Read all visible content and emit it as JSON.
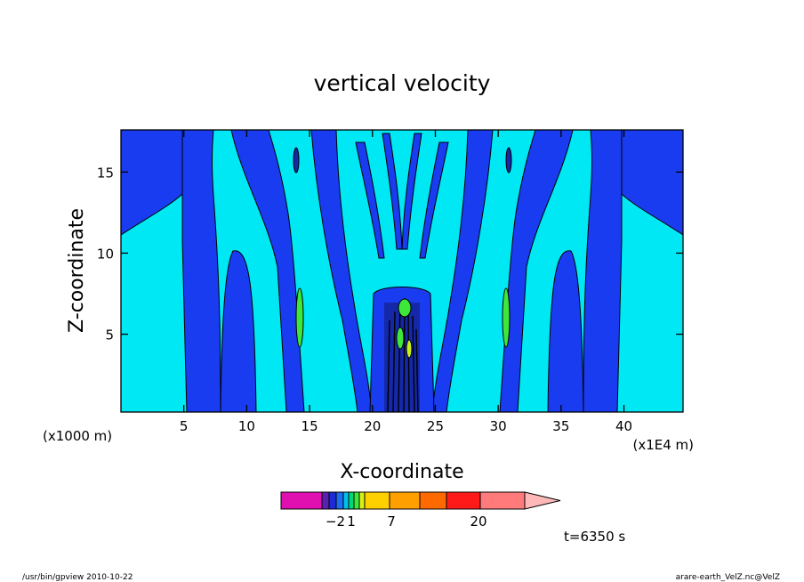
{
  "chart_data": {
    "type": "heatmap",
    "title": "vertical velocity",
    "xlabel": "X-coordinate",
    "ylabel": "Z-coordinate",
    "x_unit_left": "(x1000 m)",
    "x_unit_right": "(x1E4 m)",
    "x_ticks": [
      5,
      10,
      15,
      20,
      25,
      30,
      35,
      40
    ],
    "y_ticks": [
      5,
      10,
      15
    ],
    "xlim": [
      0,
      44.7
    ],
    "ylim": [
      0.2,
      17.6
    ],
    "colorbar": {
      "labels": [
        {
          "value": -2,
          "text": "−2"
        },
        {
          "value": 1,
          "text": "1"
        },
        {
          "value": 7,
          "text": "7"
        },
        {
          "value": 20,
          "text": "20"
        }
      ],
      "colors": [
        "#e010b0",
        "#5a20b0",
        "#1c2ad8",
        "#1e6cf0",
        "#00c0f0",
        "#00d878",
        "#3ee83a",
        "#d8f018",
        "#ffd000",
        "#ffa000",
        "#ff6a00",
        "#ff1a1a",
        "#ff7a7a",
        "#ffb8b8"
      ]
    },
    "field_levels": {
      "cyan": "#00e8f4",
      "blue": "#1a3cf0",
      "dark_blue": "#1428a8",
      "green": "#3ee83a",
      "yellow_green": "#c8f020"
    },
    "annotation": "t=6350 s"
  },
  "footer": {
    "left": "/usr/bin/gpview   2010-10-22",
    "right": "arare-earth_VelZ.nc@VelZ"
  }
}
